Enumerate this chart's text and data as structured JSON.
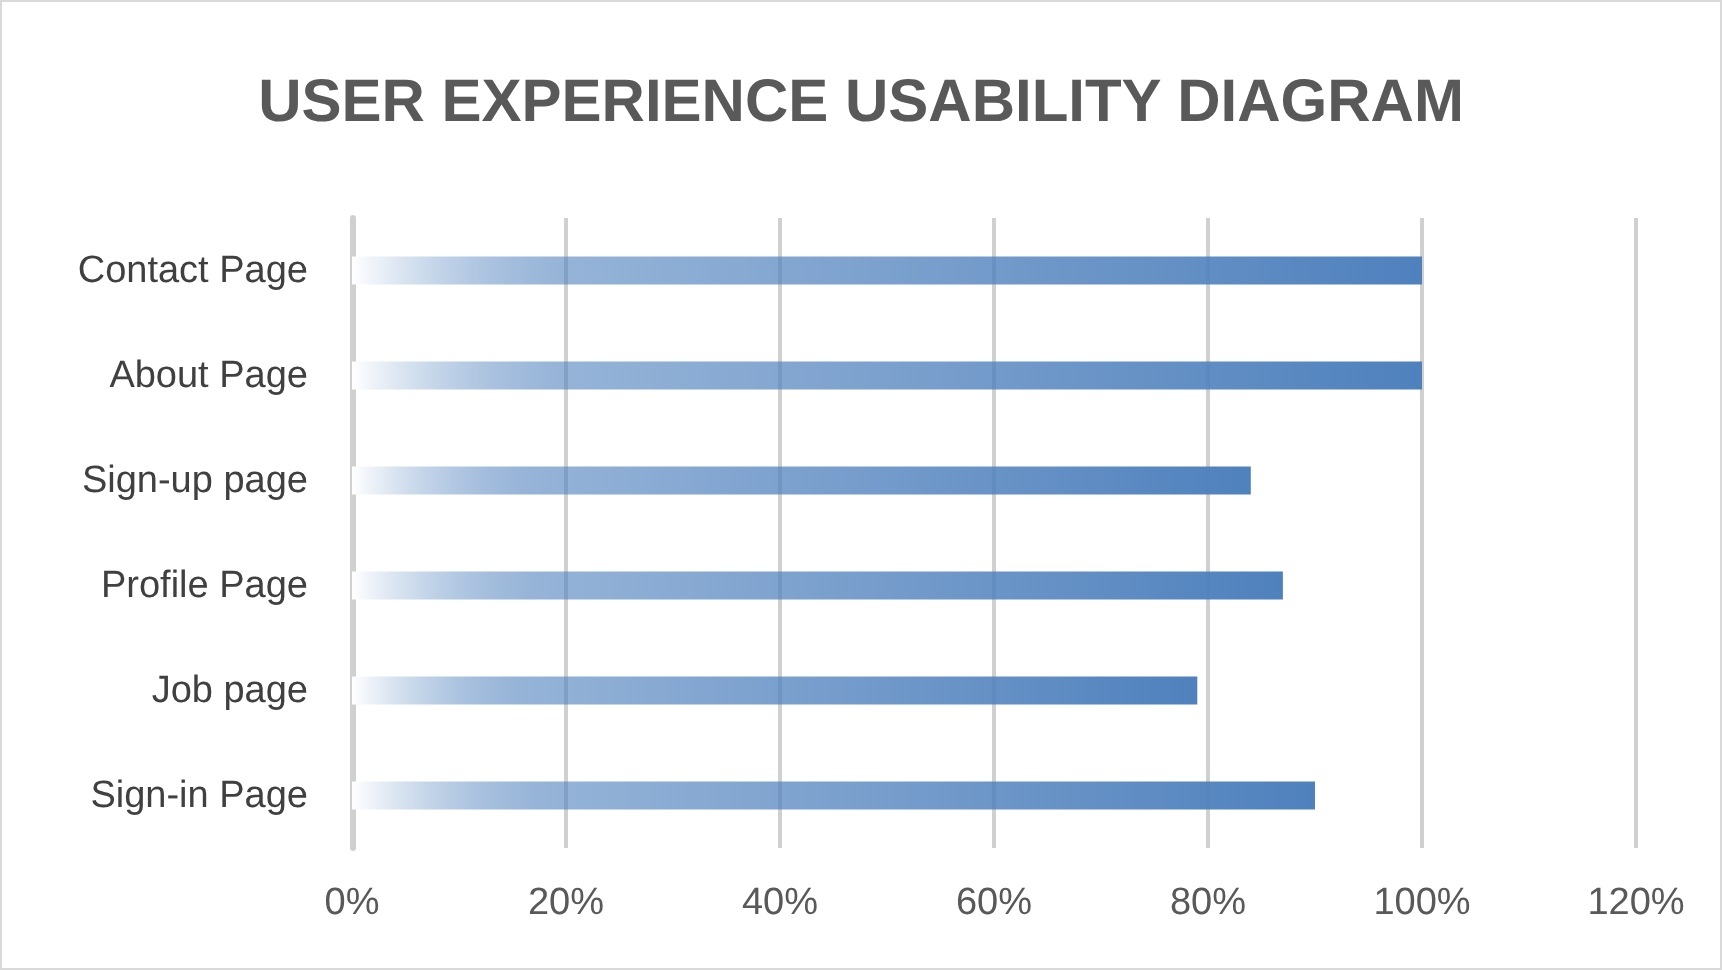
{
  "chart_data": {
    "type": "bar",
    "orientation": "horizontal",
    "title": "USER EXPERIENCE USABILITY DIAGRAM",
    "categories": [
      "Contact Page",
      "About Page",
      "Sign-up page",
      "Profile Page",
      "Job page",
      "Sign-in Page"
    ],
    "values": [
      100,
      100,
      84,
      87,
      79,
      90
    ],
    "color": "#4f81bd",
    "xlim": [
      0,
      120
    ],
    "xticks": [
      {
        "value": 0,
        "label": "0%"
      },
      {
        "value": 20,
        "label": "20%"
      },
      {
        "value": 40,
        "label": "40%"
      },
      {
        "value": 60,
        "label": "60%"
      },
      {
        "value": 80,
        "label": "80%"
      },
      {
        "value": 100,
        "label": "100%"
      },
      {
        "value": 120,
        "label": "120%"
      }
    ],
    "grid": "x"
  }
}
